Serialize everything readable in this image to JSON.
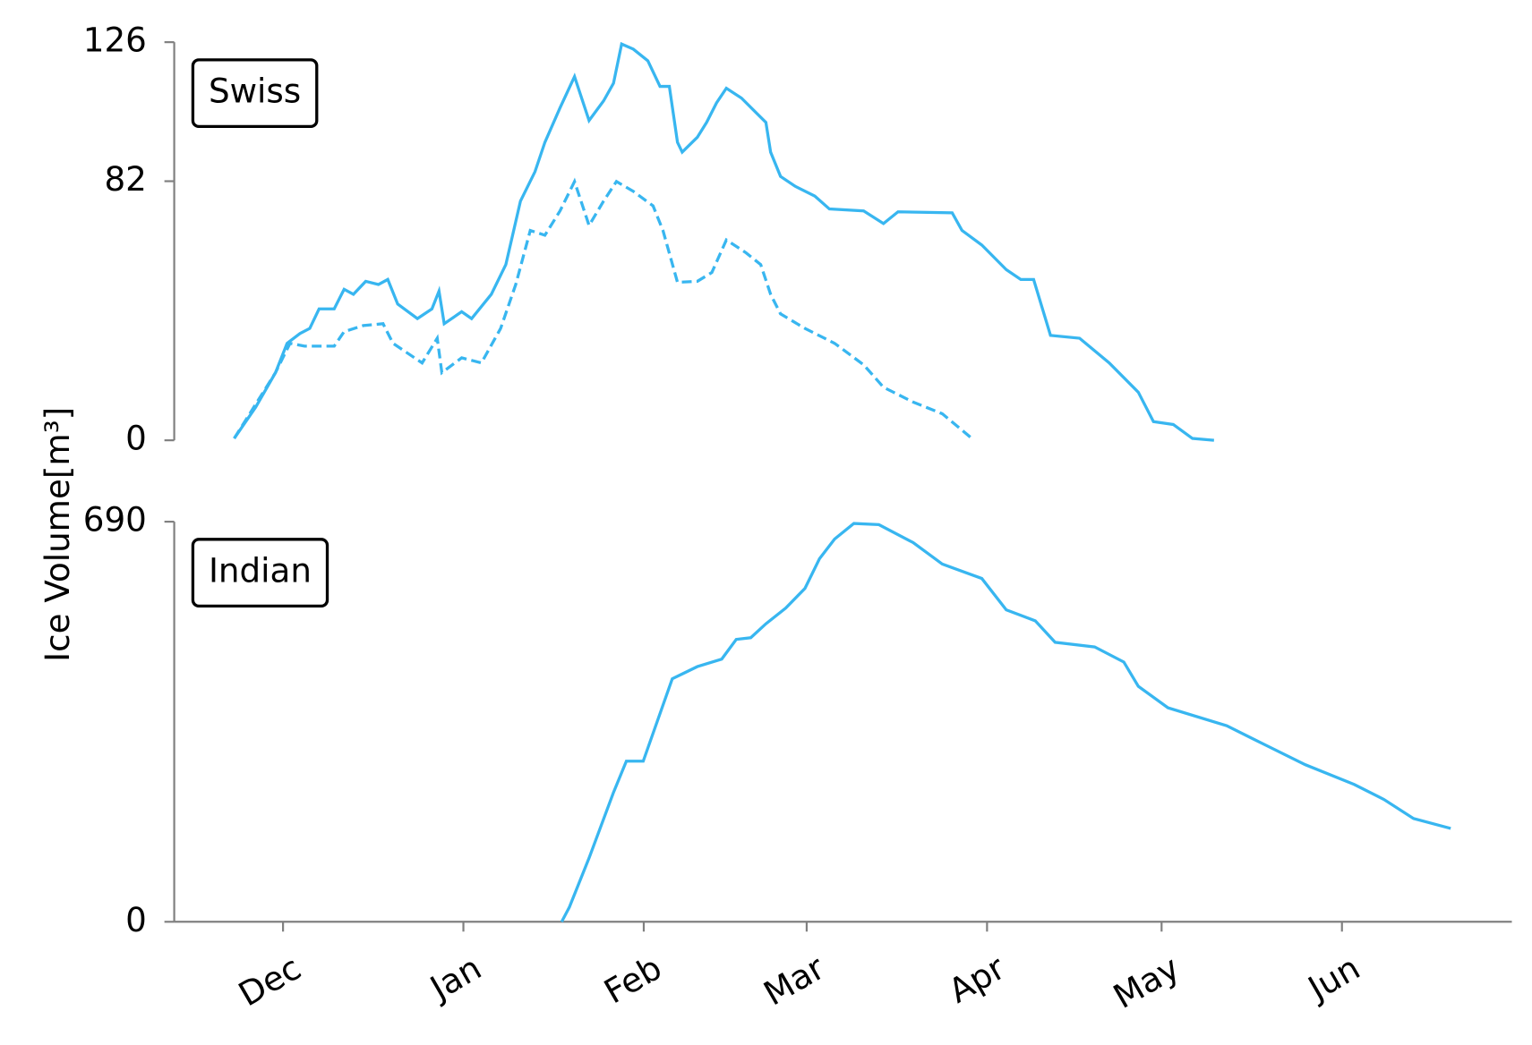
{
  "chart_data": [
    {
      "type": "line",
      "label": "Swiss",
      "ylabel": "Ice Volume[m³]",
      "ylim": [
        0,
        126
      ],
      "yticks": [
        0,
        82,
        126
      ],
      "series": [
        {
          "color": "#38b6f0",
          "linestyle": "solid",
          "x": [
            -8.4,
            -4.7,
            -1.3,
            0.7,
            2.9,
            4.6,
            6.2,
            8.8,
            10.5,
            12.1,
            14.2,
            16.4,
            18,
            19.7,
            23.1,
            25.6,
            26.8,
            27.7,
            30.7,
            32.4,
            35.8,
            38.3,
            40.8,
            43.3,
            45,
            47.6,
            50.1,
            52.6,
            55.1,
            56.8,
            58.2,
            60.2,
            62.7,
            64.8,
            66.4,
            67.8,
            68.6,
            71.2,
            72.8,
            74.5,
            76.2,
            78.8,
            81.3,
            83,
            83.8,
            85.5,
            88,
            91.4,
            93.9,
            99.8,
            103.2,
            105.7,
            115,
            116.7,
            120.1,
            124.3,
            126.8,
            129,
            131.9,
            136.9,
            142,
            147,
            149.6,
            153,
            156.3,
            160
          ],
          "values": [
            0.6,
            10.5,
            21.4,
            30.7,
            33.8,
            35.4,
            41.6,
            41.6,
            47.8,
            46.2,
            50.3,
            49.3,
            50.9,
            43.1,
            38.5,
            41.6,
            47.2,
            36.9,
            40.7,
            38.5,
            46.2,
            55.6,
            75.7,
            85,
            94.3,
            105.2,
            115.1,
            101.2,
            107.4,
            113,
            125.4,
            123.8,
            120.1,
            112,
            112,
            94.3,
            91.2,
            95.9,
            100.6,
            106.8,
            111.4,
            108.3,
            103.7,
            100.6,
            91.2,
            83.5,
            80.4,
            77.3,
            73.2,
            72.6,
            68.6,
            72.3,
            72,
            66.4,
            61.8,
            54,
            50.9,
            50.9,
            33.2,
            32.3,
            24.5,
            15.2,
            5.9,
            5,
            0.6,
            0
          ]
        },
        {
          "color": "#38b6f0",
          "linestyle": "dashed",
          "x": [
            -8.4,
            -1.3,
            1.2,
            3.7,
            8.8,
            10.5,
            13.8,
            17.2,
            18.9,
            23.9,
            26.5,
            27.3,
            30.7,
            34.1,
            37.4,
            40,
            42.5,
            45,
            47.6,
            50.1,
            52.6,
            55.1,
            57.3,
            60.2,
            63.6,
            65.3,
            67.8,
            71.2,
            73.7,
            76.2,
            79.6,
            82.1,
            83.8,
            85.5,
            89.7,
            94.8,
            99.8,
            103.2,
            108.3,
            113.3,
            118.4
          ],
          "values": [
            0.6,
            21.4,
            30.7,
            29.8,
            29.8,
            34.4,
            36.3,
            36.9,
            30.7,
            24.5,
            32.3,
            21.4,
            26.1,
            24.5,
            35.4,
            49.3,
            66.4,
            64.9,
            72.6,
            81.9,
            68,
            75.7,
            81.9,
            78.8,
            74.2,
            66.4,
            50,
            50.3,
            53.1,
            63.4,
            59.3,
            55.6,
            46.2,
            40,
            35.4,
            30.7,
            23.9,
            16.8,
            12.1,
            8.4,
            0.6
          ]
        }
      ]
    },
    {
      "type": "line",
      "label": "Indian",
      "ylim": [
        0,
        690
      ],
      "yticks": [
        0,
        690
      ],
      "xlim": [
        -18.7,
        211.2
      ],
      "xticks": [
        {
          "value": 0,
          "label": "Dec"
        },
        {
          "value": 31,
          "label": "Jan"
        },
        {
          "value": 62,
          "label": "Feb"
        },
        {
          "value": 90,
          "label": "Mar"
        },
        {
          "value": 121,
          "label": "Apr"
        },
        {
          "value": 151,
          "label": "May"
        },
        {
          "value": 182,
          "label": "Jun"
        }
      ],
      "series": [
        {
          "color": "#38b6f0",
          "linestyle": "solid",
          "x": [
            47.9,
            49.2,
            52.6,
            56.8,
            59,
            61.9,
            66.9,
            71.2,
            75.4,
            77.9,
            80.4,
            83,
            86.4,
            89.7,
            92.2,
            94.8,
            98.1,
            102.4,
            108.3,
            113.3,
            120.1,
            124.3,
            129.3,
            132.7,
            139.5,
            144.5,
            147,
            152.1,
            162.2,
            169,
            175.7,
            184.1,
            189.2,
            194.3,
            200.7
          ],
          "values": [
            0,
            25,
            110,
            223,
            277,
            277,
            419,
            440,
            453,
            487,
            490,
            514,
            541,
            575,
            626,
            660,
            687,
            685,
            654,
            617,
            592,
            538,
            519,
            482,
            474,
            448,
            406,
            369,
            338,
            304,
            271,
            237,
            211,
            178,
            161
          ]
        }
      ]
    }
  ]
}
